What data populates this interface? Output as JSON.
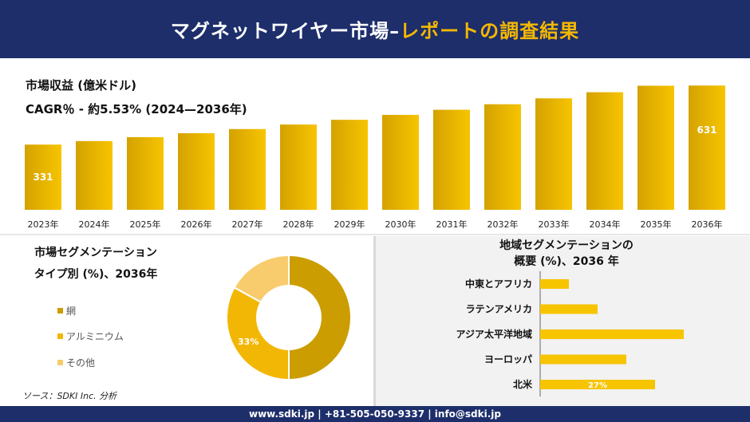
{
  "header": {
    "title_main": "マグネットワイヤー市場–",
    "title_accent": "レポートの調査結果"
  },
  "revenue": {
    "title": "市場収益 (億米ドル)",
    "cagr": "CAGR％ - 約5.53% (2024—2036年)"
  },
  "segment": {
    "title_line1": "市場セグメンテーション",
    "title_line2": "タイプ別 (%)、2036年"
  },
  "region": {
    "title_line1": "地域セグメンテーションの",
    "title_line2": "概要 (%)、2036 年"
  },
  "source": "ソース：SDKI Inc. 分析",
  "footer": {
    "text": "www.sdki.jp | +81-505-050-9337 | info@sdki.jp"
  },
  "colors": {
    "navy": "#1d2e6b",
    "gold": "#f5b800",
    "bar_dark": "#d4a200",
    "bar_light": "#f7c400"
  },
  "chart_data": [
    {
      "type": "bar",
      "title": "市場収益 (億米ドル)",
      "categories": [
        "2023年",
        "2024年",
        "2025年",
        "2026年",
        "2027年",
        "2028年",
        "2029年",
        "2030年",
        "2031年",
        "2032年",
        "2033年",
        "2034年",
        "2035年",
        "2036年"
      ],
      "values": [
        331,
        349,
        369,
        389,
        410,
        433,
        457,
        482,
        508,
        536,
        566,
        597,
        630,
        631
      ],
      "data_labels": {
        "2023年": "331",
        "2036年": "631"
      },
      "ylim": [
        0,
        640
      ],
      "grid": false
    },
    {
      "type": "pie",
      "subtype": "donut",
      "categories": [
        "網",
        "アルミニウム",
        "その他"
      ],
      "values": [
        50,
        33,
        17
      ],
      "data_labels": {
        "アルミニウム": "33%"
      },
      "colors": [
        "#cc9d00",
        "#f2b705",
        "#f8cc6c"
      ],
      "legend": "left"
    },
    {
      "type": "bar",
      "orientation": "horizontal",
      "categories": [
        "中東とアフリカ",
        "ラテンアメリカ",
        "アジア太平洋地域",
        "ヨーロッパ",
        "北米"
      ],
      "values": [
        9,
        18,
        45,
        27,
        36
      ],
      "data_labels": {
        "北米": "27%"
      },
      "xlim": [
        0,
        60
      ]
    }
  ]
}
